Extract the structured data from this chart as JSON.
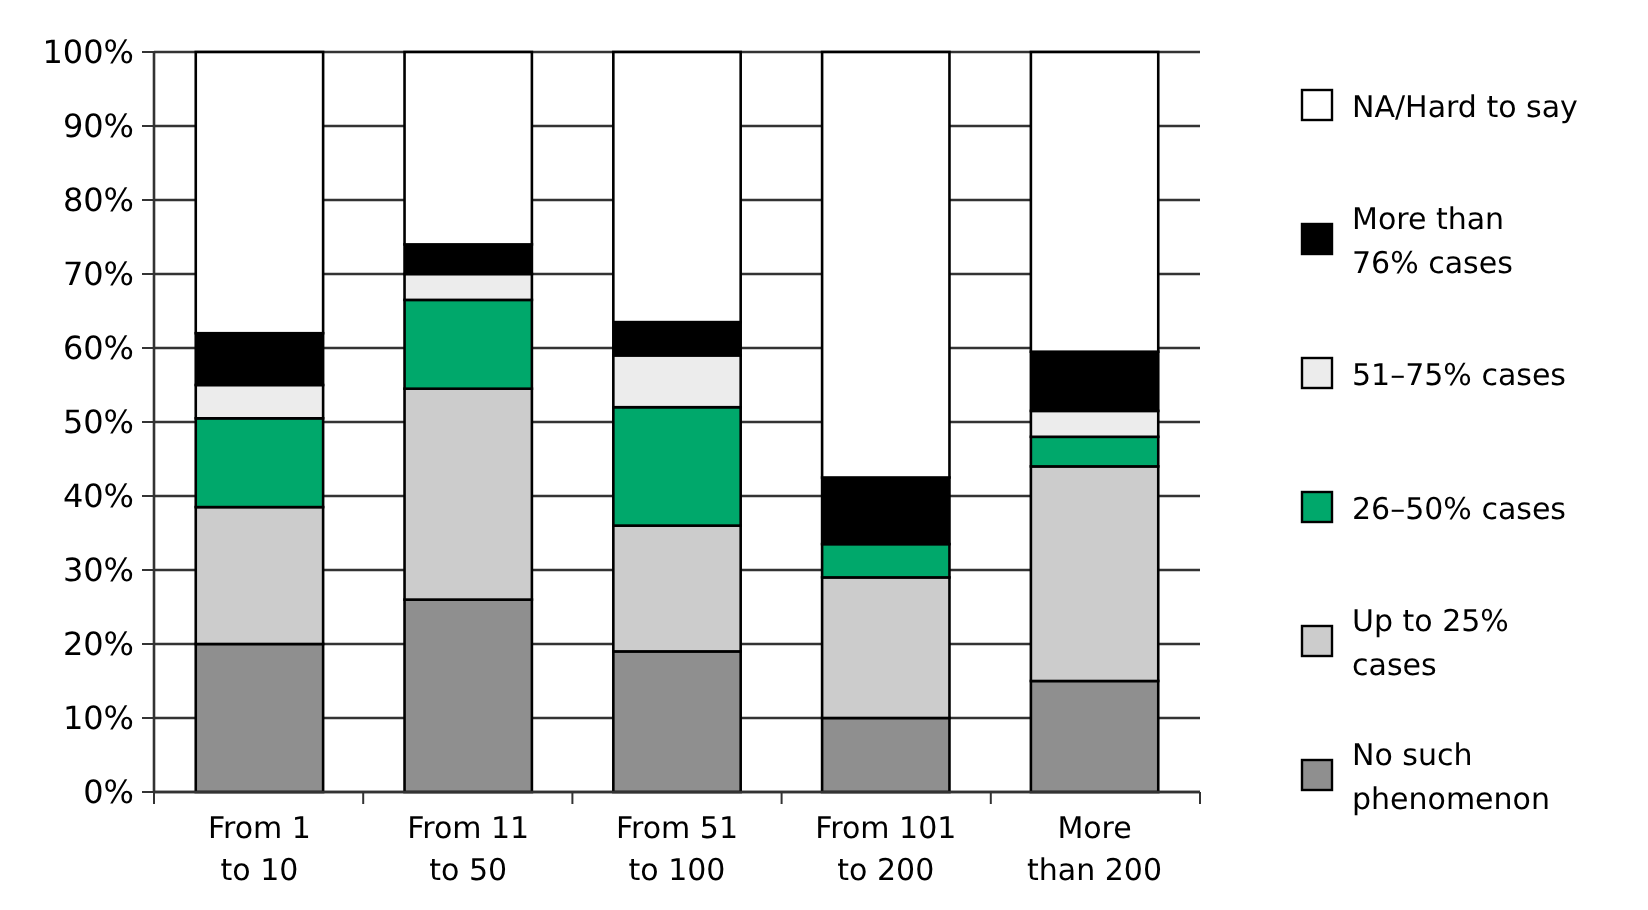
{
  "chart_data": {
    "type": "bar",
    "stacked": true,
    "categories": [
      "From 1\nto 10",
      "From 11\nto 50",
      "From 51\nto 100",
      "From 101\nto 200",
      "More\nthan 200"
    ],
    "series": [
      {
        "name": "No such\nphenomenon",
        "color": "#8f8f8f",
        "values": [
          20,
          26,
          19,
          10,
          15
        ]
      },
      {
        "name": "Up to 25%\ncases",
        "color": "#cccccc",
        "values": [
          18.5,
          28.5,
          17,
          19,
          29
        ]
      },
      {
        "name": "26–50% cases",
        "color": "#00a86b",
        "values": [
          12,
          12,
          16,
          4.5,
          4
        ]
      },
      {
        "name": "51–75% cases",
        "color": "#ececec",
        "values": [
          4.5,
          3.5,
          7,
          0,
          3.5
        ]
      },
      {
        "name": "More than\n76% cases",
        "color": "#000000",
        "values": [
          7,
          4,
          4.5,
          9,
          8
        ]
      },
      {
        "name": "NA/Hard to say",
        "color": "#ffffff",
        "values": [
          38,
          26,
          36.5,
          57.5,
          40.5
        ]
      }
    ],
    "ylim": [
      0,
      100
    ],
    "yticks": [
      {
        "value": 0,
        "label": "0%"
      },
      {
        "value": 10,
        "label": "10%"
      },
      {
        "value": 20,
        "label": "20%"
      },
      {
        "value": 30,
        "label": "30%"
      },
      {
        "value": 40,
        "label": "40%"
      },
      {
        "value": 50,
        "label": "50%"
      },
      {
        "value": 60,
        "label": "60%"
      },
      {
        "value": 70,
        "label": "70%"
      },
      {
        "value": 80,
        "label": "80%"
      },
      {
        "value": 90,
        "label": "90%"
      },
      {
        "value": 100,
        "label": "100%"
      }
    ],
    "grid": "y",
    "legend": "right"
  }
}
